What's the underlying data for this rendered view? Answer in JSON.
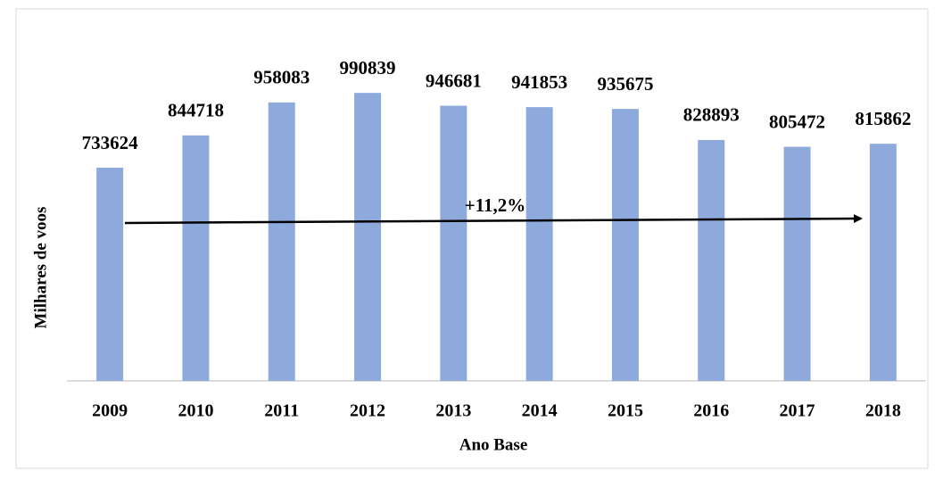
{
  "chart_data": {
    "type": "bar",
    "categories": [
      "2009",
      "2010",
      "2011",
      "2012",
      "2013",
      "2014",
      "2015",
      "2016",
      "2017",
      "2018"
    ],
    "values": [
      733624,
      844718,
      958083,
      990839,
      946681,
      941853,
      935675,
      828893,
      805472,
      815862
    ],
    "color": "#8eaadc",
    "ylim": [
      0,
      1200000
    ],
    "y_label": "Milhares de voos",
    "x_label": "Ano Base",
    "annotation": "+11,2%"
  }
}
